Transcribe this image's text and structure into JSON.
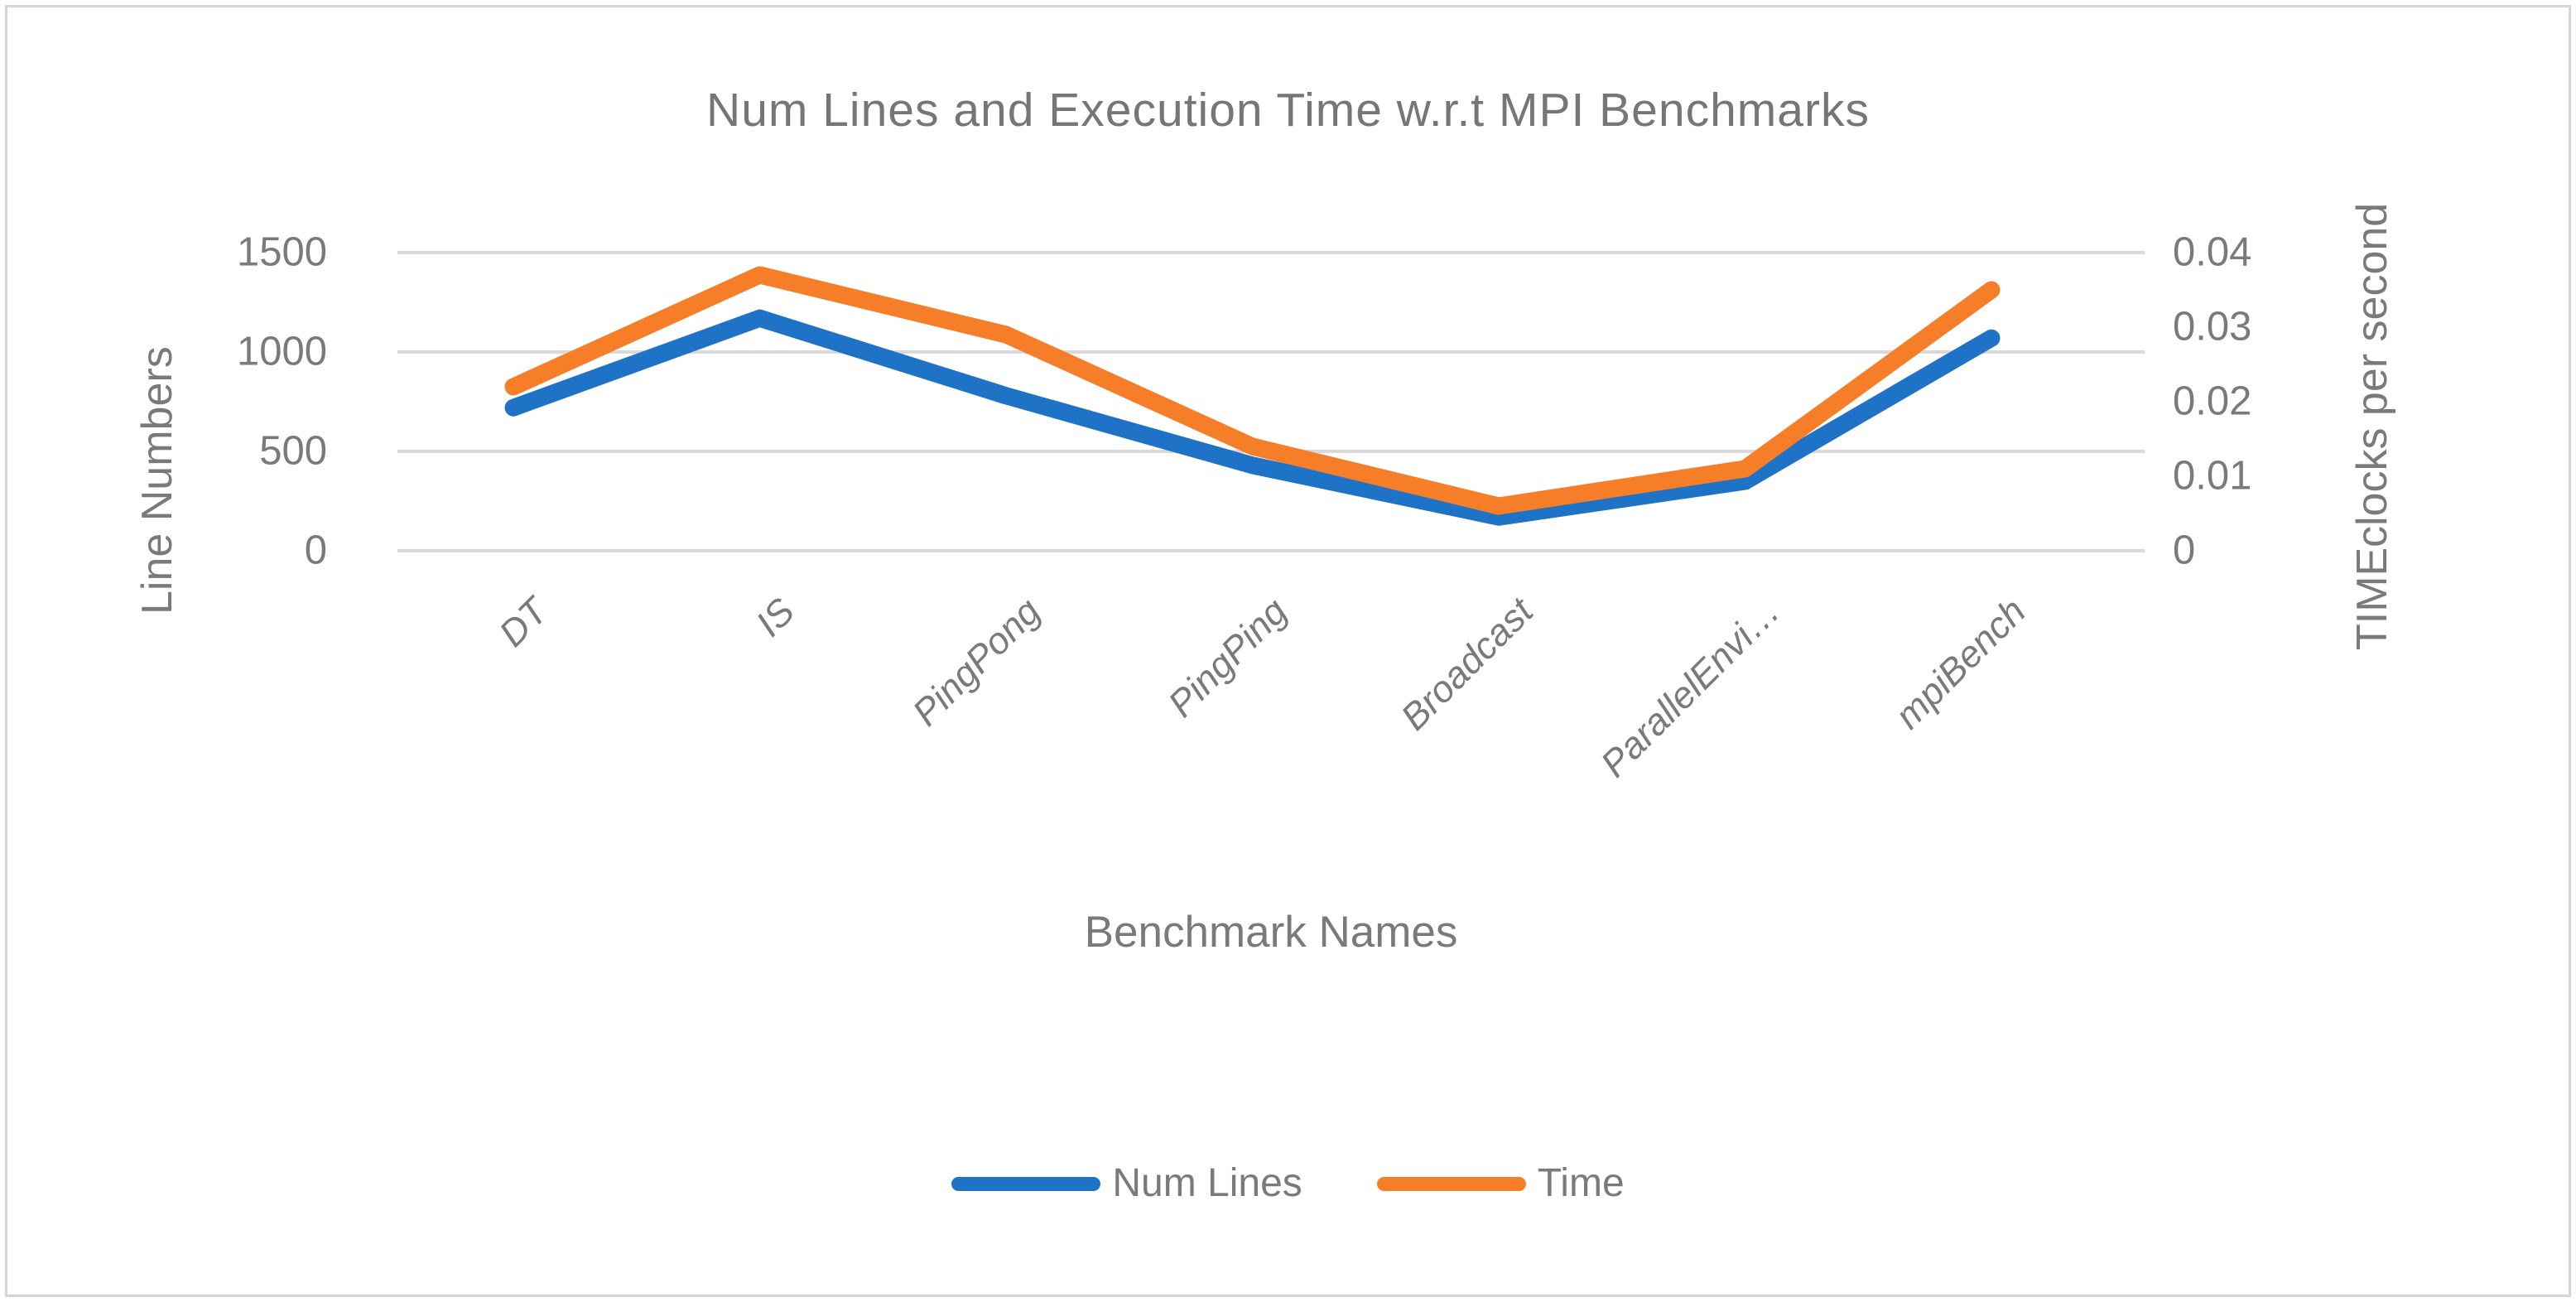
{
  "colors": {
    "series_blue": "#1f73c6",
    "series_orange": "#f67e28",
    "grid": "#d9d9d9",
    "text": "#7a7a7a",
    "border": "#d3d6d8"
  },
  "chart_data": {
    "type": "line",
    "title": "Num Lines and Execution Time w.r.t MPI Benchmarks",
    "xlabel": "Benchmark Names",
    "categories": [
      "DT",
      "IS",
      "PingPong",
      "PingPing",
      "Broadcast",
      "ParallelEnvi…",
      "mpiBench"
    ],
    "left_axis": {
      "label": "Line Numbers",
      "ticks": [
        "0",
        "500",
        "1000",
        "1500"
      ],
      "range": [
        0,
        1500
      ]
    },
    "right_axis": {
      "label_line1": "TIME",
      "label_line2": "clocks per second",
      "ticks": [
        "0",
        "0.01",
        "0.02",
        "0.03",
        "0.04"
      ],
      "range": [
        0,
        0.04
      ]
    },
    "series": [
      {
        "name": "Num Lines",
        "axis": "left",
        "color": "#1f73c6",
        "values": [
          720,
          1170,
          780,
          430,
          170,
          350,
          1070
        ]
      },
      {
        "name": "Time",
        "axis": "right",
        "color": "#f67e28",
        "values": [
          0.022,
          0.037,
          0.029,
          0.014,
          0.006,
          0.011,
          0.035
        ]
      }
    ],
    "grid": true,
    "legend_position": "bottom"
  }
}
